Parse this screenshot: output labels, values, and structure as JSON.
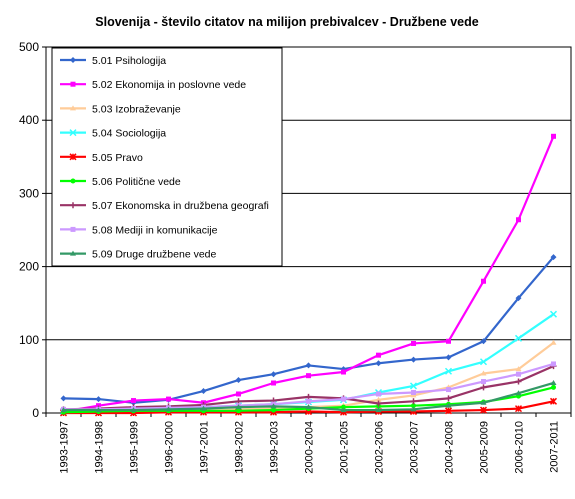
{
  "chart_data": {
    "type": "line",
    "title": "Slovenija - število citatov na milijon prebivalcev - Družbene vede",
    "xlabel": "",
    "ylabel": "",
    "ylim": [
      0,
      500
    ],
    "yticks": [
      0,
      100,
      200,
      300,
      400,
      500
    ],
    "grid": "horizontal",
    "legend_position": "top-left",
    "categories": [
      "1993-1997",
      "1994-1998",
      "1995-1999",
      "1996-2000",
      "1997-2001",
      "1998-2002",
      "1999-2003",
      "2000-2004",
      "2001-2005",
      "2002-2006",
      "2003-2007",
      "2004-2008",
      "2005-2009",
      "2006-2010",
      "2007-2011"
    ],
    "series": [
      {
        "name": "5.01 Psihologija",
        "color": "#3366CC",
        "marker": "diamond",
        "values": [
          20,
          19,
          14,
          18,
          30,
          45,
          53,
          65,
          60,
          68,
          73,
          76,
          98,
          157,
          213
        ]
      },
      {
        "name": "5.02 Ekonomija in poslovne vede",
        "color": "#FF00FF",
        "marker": "square",
        "values": [
          2,
          10,
          17,
          19,
          14,
          26,
          41,
          51,
          56,
          79,
          95,
          98,
          180,
          264,
          378
        ]
      },
      {
        "name": "5.03 Izobraževanje",
        "color": "#FFCC99",
        "marker": "triangle",
        "values": [
          1,
          1,
          2,
          3,
          3,
          5,
          6,
          8,
          10,
          18,
          24,
          35,
          54,
          60,
          96
        ]
      },
      {
        "name": "5.04 Sociologija",
        "color": "#33FFFF",
        "marker": "x",
        "values": [
          2,
          3,
          5,
          6,
          8,
          10,
          12,
          15,
          18,
          28,
          37,
          57,
          70,
          102,
          135
        ]
      },
      {
        "name": "5.05 Pravo",
        "color": "#FF0000",
        "marker": "star",
        "values": [
          0,
          0,
          0,
          1,
          1,
          1,
          1,
          2,
          1,
          2,
          2,
          3,
          4,
          6,
          16
        ]
      },
      {
        "name": "5.06 Politične vede",
        "color": "#00FF00",
        "marker": "circle",
        "values": [
          1,
          2,
          3,
          3,
          3,
          3,
          4,
          6,
          8,
          9,
          10,
          12,
          15,
          23,
          35
        ]
      },
      {
        "name": "5.07 Ekonomska in družbena geografi",
        "color": "#993366",
        "marker": "plus",
        "values": [
          5,
          6,
          8,
          9,
          11,
          16,
          17,
          22,
          20,
          13,
          16,
          20,
          35,
          43,
          64
        ]
      },
      {
        "name": "5.08 Mediji in komunikacije",
        "color": "#CC99FF",
        "marker": "square",
        "values": [
          5,
          5,
          6,
          7,
          8,
          10,
          12,
          16,
          19,
          26,
          28,
          32,
          43,
          53,
          67
        ]
      },
      {
        "name": "5.09 Druge družbene vede",
        "color": "#339966",
        "marker": "triangle",
        "values": [
          4,
          4,
          4,
          5,
          6,
          8,
          9,
          8,
          4,
          4,
          5,
          10,
          14,
          27,
          41
        ]
      }
    ]
  }
}
